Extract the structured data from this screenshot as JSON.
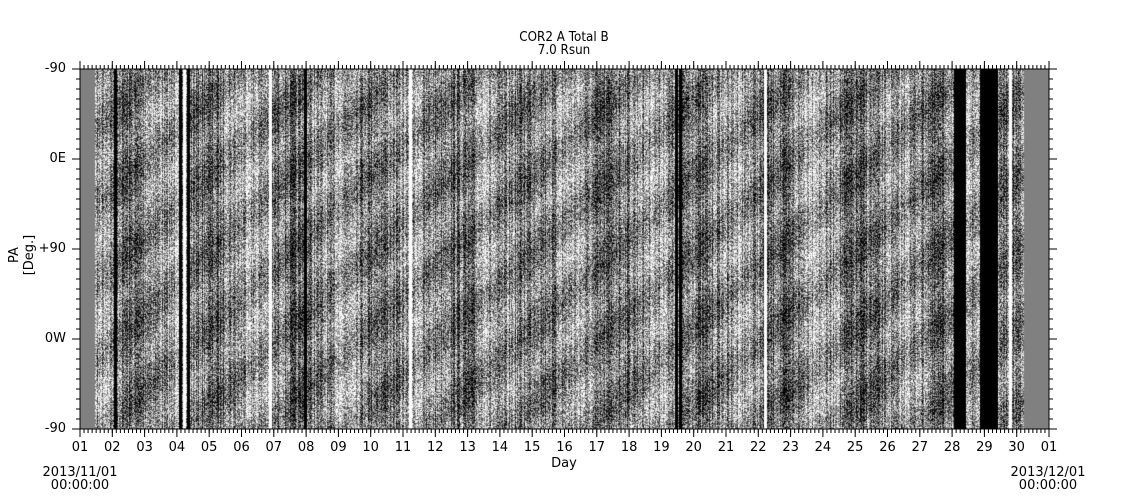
{
  "chart_data": {
    "type": "heatmap",
    "title": "COR2 A Total B",
    "subtitle": "7.0 Rsun",
    "xlabel": "Day",
    "ylabel": "PA [Deg.]",
    "x_tick_labels": [
      "01",
      "02",
      "03",
      "04",
      "05",
      "06",
      "07",
      "08",
      "09",
      "10",
      "11",
      "12",
      "13",
      "14",
      "15",
      "16",
      "17",
      "18",
      "19",
      "20",
      "21",
      "22",
      "23",
      "24",
      "25",
      "26",
      "27",
      "28",
      "29",
      "30",
      "01"
    ],
    "y_tick_labels": [
      "-90",
      "0E",
      "+90",
      "0W",
      "-90"
    ],
    "x_start_label": {
      "date": "2013/11/01",
      "time": "00:00:00"
    },
    "x_end_label": {
      "date": "2013/12/01",
      "time": "00:00:00"
    },
    "xlim_days": [
      0,
      30
    ],
    "colormap": "grayscale",
    "no_data_color": "#808080",
    "no_data_day_ranges": [
      [
        0,
        0.45
      ],
      [
        29.2,
        30
      ]
    ]
  }
}
